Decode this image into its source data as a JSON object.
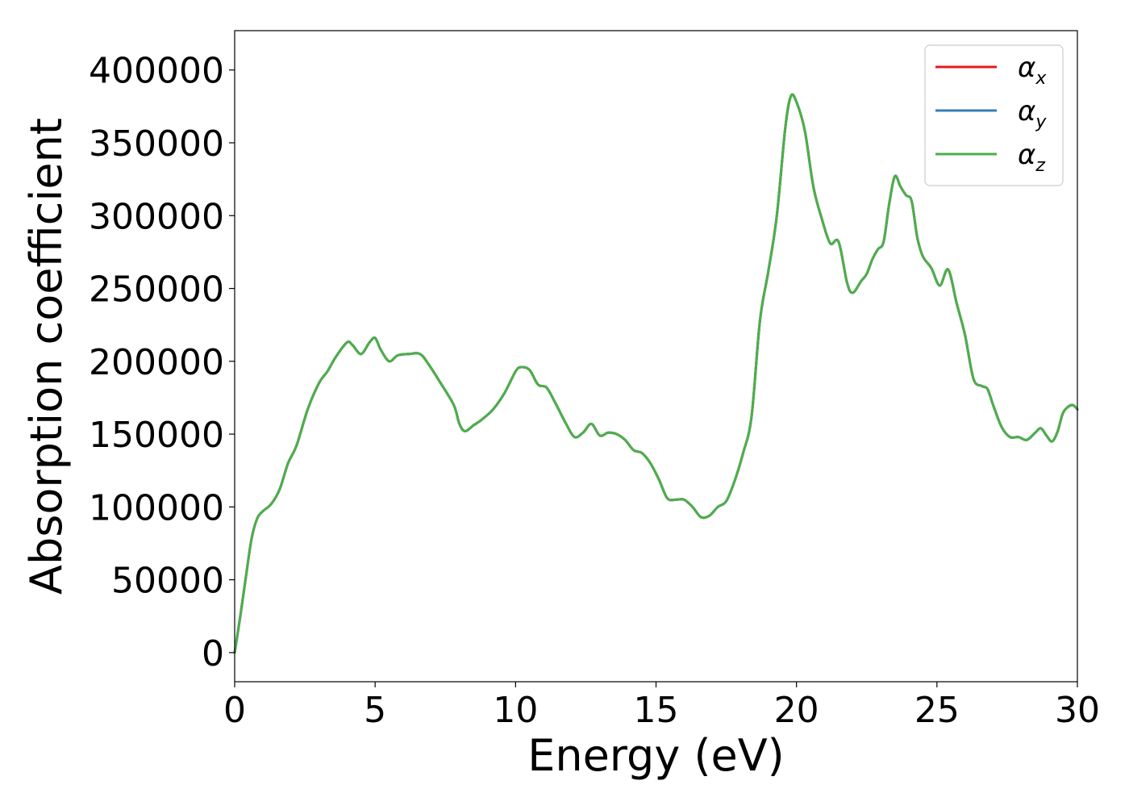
{
  "chart_data": {
    "type": "line",
    "title": "",
    "xlabel": "Energy (eV)",
    "ylabel": "Absorption coefficient",
    "xlim": [
      0,
      30
    ],
    "ylim": [
      -20000,
      427000
    ],
    "xticks": [
      0,
      5,
      10,
      15,
      20,
      25,
      30
    ],
    "xtick_labels": [
      "0",
      "5",
      "10",
      "15",
      "20",
      "25",
      "30"
    ],
    "yticks": [
      0,
      50000,
      100000,
      150000,
      200000,
      250000,
      300000,
      350000,
      400000
    ],
    "ytick_labels": [
      "0",
      "50000",
      "100000",
      "150000",
      "200000",
      "250000",
      "300000",
      "350000",
      "400000"
    ],
    "grid": false,
    "legend_position": "top-right",
    "series": [
      {
        "name": "α_x",
        "symbol": "α",
        "subscript": "x",
        "color": "#e41a1c",
        "x": [
          0,
          0.2,
          0.4,
          0.6,
          0.8,
          1.0,
          1.3,
          1.6,
          1.9,
          2.2,
          2.6,
          3.0,
          3.3,
          3.6,
          4.0,
          4.2,
          4.5,
          4.8,
          5.0,
          5.2,
          5.5,
          5.8,
          6.2,
          6.6,
          6.9,
          7.3,
          7.8,
          8.0,
          8.2,
          8.5,
          8.8,
          9.2,
          9.6,
          10.0,
          10.2,
          10.5,
          10.8,
          11.1,
          11.4,
          11.8,
          12.1,
          12.4,
          12.7,
          13.0,
          13.3,
          13.6,
          13.9,
          14.2,
          14.5,
          14.8,
          15.1,
          15.4,
          15.7,
          16.0,
          16.3,
          16.6,
          16.9,
          17.2,
          17.5,
          17.8,
          18.1,
          18.4,
          18.7,
          19.0,
          19.3,
          19.6,
          19.8,
          20.0,
          20.3,
          20.6,
          20.9,
          21.2,
          21.5,
          21.8,
          22.0,
          22.3,
          22.5,
          22.7,
          22.9,
          23.1,
          23.3,
          23.5,
          23.7,
          23.9,
          24.1,
          24.3,
          24.5,
          24.8,
          25.1,
          25.4,
          25.7,
          26.0,
          26.3,
          26.6,
          26.8,
          27.0,
          27.3,
          27.6,
          27.9,
          28.2,
          28.5,
          28.7,
          28.9,
          29.1,
          29.3,
          29.5,
          29.8,
          30.0
        ],
        "y": [
          0,
          25000,
          52000,
          78000,
          92000,
          97000,
          102000,
          112000,
          130000,
          142000,
          167000,
          185000,
          193000,
          203000,
          213000,
          211000,
          205000,
          213000,
          216000,
          208000,
          200000,
          204000,
          205000,
          205000,
          198000,
          186000,
          170000,
          157000,
          152000,
          156000,
          160000,
          167000,
          178000,
          193000,
          196000,
          194000,
          184000,
          182000,
          172000,
          157000,
          148000,
          151000,
          157000,
          149000,
          151000,
          150000,
          146000,
          139000,
          137000,
          130000,
          119000,
          106000,
          105000,
          105000,
          100000,
          93000,
          94000,
          100000,
          104000,
          118000,
          137000,
          162000,
          228000,
          262000,
          300000,
          360000,
          382000,
          378000,
          358000,
          320000,
          298000,
          281000,
          282000,
          254000,
          247000,
          255000,
          260000,
          270000,
          277000,
          282000,
          308000,
          327000,
          320000,
          314000,
          310000,
          285000,
          272000,
          264000,
          252000,
          263000,
          240000,
          218000,
          188000,
          183000,
          181000,
          170000,
          155000,
          148000,
          148000,
          146000,
          151000,
          154000,
          149000,
          145000,
          152000,
          165000,
          170000,
          167000
        ]
      },
      {
        "name": "α_y",
        "symbol": "α",
        "subscript": "y",
        "color": "#377eb8",
        "x": [
          0,
          0.2,
          0.4,
          0.6,
          0.8,
          1.0,
          1.3,
          1.6,
          1.9,
          2.2,
          2.6,
          3.0,
          3.3,
          3.6,
          4.0,
          4.2,
          4.5,
          4.8,
          5.0,
          5.2,
          5.5,
          5.8,
          6.2,
          6.6,
          6.9,
          7.3,
          7.8,
          8.0,
          8.2,
          8.5,
          8.8,
          9.2,
          9.6,
          10.0,
          10.2,
          10.5,
          10.8,
          11.1,
          11.4,
          11.8,
          12.1,
          12.4,
          12.7,
          13.0,
          13.3,
          13.6,
          13.9,
          14.2,
          14.5,
          14.8,
          15.1,
          15.4,
          15.7,
          16.0,
          16.3,
          16.6,
          16.9,
          17.2,
          17.5,
          17.8,
          18.1,
          18.4,
          18.7,
          19.0,
          19.3,
          19.6,
          19.8,
          20.0,
          20.3,
          20.6,
          20.9,
          21.2,
          21.5,
          21.8,
          22.0,
          22.3,
          22.5,
          22.7,
          22.9,
          23.1,
          23.3,
          23.5,
          23.7,
          23.9,
          24.1,
          24.3,
          24.5,
          24.8,
          25.1,
          25.4,
          25.7,
          26.0,
          26.3,
          26.6,
          26.8,
          27.0,
          27.3,
          27.6,
          27.9,
          28.2,
          28.5,
          28.7,
          28.9,
          29.1,
          29.3,
          29.5,
          29.8,
          30.0
        ],
        "y": [
          0,
          25000,
          52000,
          78000,
          92000,
          97000,
          102000,
          112000,
          130000,
          142000,
          167000,
          185000,
          193000,
          203000,
          213000,
          211000,
          205000,
          213000,
          216000,
          208000,
          200000,
          204000,
          205000,
          205000,
          198000,
          186000,
          170000,
          157000,
          152000,
          156000,
          160000,
          167000,
          178000,
          193000,
          196000,
          194000,
          184000,
          182000,
          172000,
          157000,
          148000,
          151000,
          157000,
          149000,
          151000,
          150000,
          146000,
          139000,
          137000,
          130000,
          119000,
          106000,
          105000,
          105000,
          100000,
          93000,
          94000,
          100000,
          104000,
          118000,
          137000,
          162000,
          228000,
          262000,
          300000,
          360000,
          382000,
          378000,
          358000,
          320000,
          298000,
          281000,
          282000,
          254000,
          247000,
          255000,
          260000,
          270000,
          277000,
          282000,
          308000,
          327000,
          320000,
          314000,
          310000,
          285000,
          272000,
          264000,
          252000,
          263000,
          240000,
          218000,
          188000,
          183000,
          181000,
          170000,
          155000,
          148000,
          148000,
          146000,
          151000,
          154000,
          149000,
          145000,
          152000,
          165000,
          170000,
          167000
        ]
      },
      {
        "name": "α_z",
        "symbol": "α",
        "subscript": "z",
        "color": "#4daf4a",
        "x": [
          0,
          0.2,
          0.4,
          0.6,
          0.8,
          1.0,
          1.3,
          1.6,
          1.9,
          2.2,
          2.6,
          3.0,
          3.3,
          3.6,
          4.0,
          4.2,
          4.5,
          4.8,
          5.0,
          5.2,
          5.5,
          5.8,
          6.2,
          6.6,
          6.9,
          7.3,
          7.8,
          8.0,
          8.2,
          8.5,
          8.8,
          9.2,
          9.6,
          10.0,
          10.2,
          10.5,
          10.8,
          11.1,
          11.4,
          11.8,
          12.1,
          12.4,
          12.7,
          13.0,
          13.3,
          13.6,
          13.9,
          14.2,
          14.5,
          14.8,
          15.1,
          15.4,
          15.7,
          16.0,
          16.3,
          16.6,
          16.9,
          17.2,
          17.5,
          17.8,
          18.1,
          18.4,
          18.7,
          19.0,
          19.3,
          19.6,
          19.8,
          20.0,
          20.3,
          20.6,
          20.9,
          21.2,
          21.5,
          21.8,
          22.0,
          22.3,
          22.5,
          22.7,
          22.9,
          23.1,
          23.3,
          23.5,
          23.7,
          23.9,
          24.1,
          24.3,
          24.5,
          24.8,
          25.1,
          25.4,
          25.7,
          26.0,
          26.3,
          26.6,
          26.8,
          27.0,
          27.3,
          27.6,
          27.9,
          28.2,
          28.5,
          28.7,
          28.9,
          29.1,
          29.3,
          29.5,
          29.8,
          30.0
        ],
        "y": [
          0,
          25000,
          52000,
          78000,
          92000,
          97000,
          102000,
          112000,
          130000,
          142000,
          167000,
          185000,
          193000,
          203000,
          213000,
          211000,
          205000,
          213000,
          216000,
          208000,
          200000,
          204000,
          205000,
          205000,
          198000,
          186000,
          170000,
          157000,
          152000,
          156000,
          160000,
          167000,
          178000,
          193000,
          196000,
          194000,
          184000,
          182000,
          172000,
          157000,
          148000,
          151000,
          157000,
          149000,
          151000,
          150000,
          146000,
          139000,
          137000,
          130000,
          119000,
          106000,
          105000,
          105000,
          100000,
          93000,
          94000,
          100000,
          104000,
          118000,
          137000,
          162000,
          228000,
          262000,
          300000,
          360000,
          382000,
          378000,
          358000,
          320000,
          298000,
          281000,
          282000,
          254000,
          247000,
          255000,
          260000,
          270000,
          277000,
          282000,
          308000,
          327000,
          320000,
          314000,
          310000,
          285000,
          272000,
          264000,
          252000,
          263000,
          240000,
          218000,
          188000,
          183000,
          181000,
          170000,
          155000,
          148000,
          148000,
          146000,
          151000,
          154000,
          149000,
          145000,
          152000,
          165000,
          170000,
          167000
        ]
      }
    ]
  }
}
